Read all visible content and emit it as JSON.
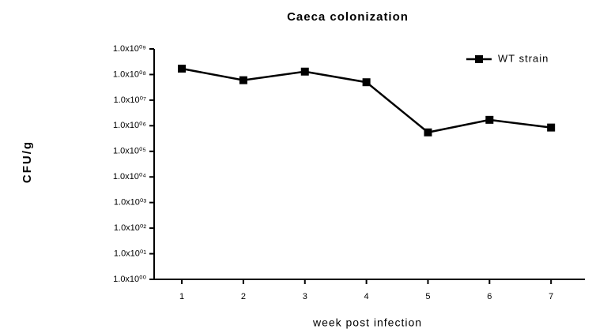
{
  "chart_data": {
    "type": "line",
    "title": "Caeca colonization",
    "x_label": "week post infection",
    "y_label": "CFU/g",
    "x": [
      1,
      2,
      3,
      4,
      5,
      6,
      7
    ],
    "xlim": [
      0.55,
      7.55
    ],
    "xticks": [
      1,
      2,
      3,
      4,
      5,
      6,
      7
    ],
    "ylim": [
      1,
      1000000000
    ],
    "log_y": true,
    "yticks": [
      {
        "value": 1,
        "label": "1.0x10⁰⁰"
      },
      {
        "value": 10,
        "label": "1.0x10⁰¹"
      },
      {
        "value": 100,
        "label": "1.0x10⁰²"
      },
      {
        "value": 1000,
        "label": "1.0x10⁰³"
      },
      {
        "value": 10000,
        "label": "1.0x10⁰⁴"
      },
      {
        "value": 100000,
        "label": "1.0x10⁰⁵"
      },
      {
        "value": 1000000,
        "label": "1.0x10⁰⁶"
      },
      {
        "value": 10000000,
        "label": "1.0x10⁰⁷"
      },
      {
        "value": 100000000,
        "label": "1.0x10⁰⁸"
      },
      {
        "value": 1000000000,
        "label": "1.0x10⁰⁹"
      }
    ],
    "grid": false,
    "legend_position": "upper-right",
    "series": [
      {
        "name": "WT strain",
        "color": "#000000",
        "values": [
          170000000,
          60000000,
          130000000,
          50000000,
          550000,
          1700000,
          850000
        ]
      }
    ]
  }
}
